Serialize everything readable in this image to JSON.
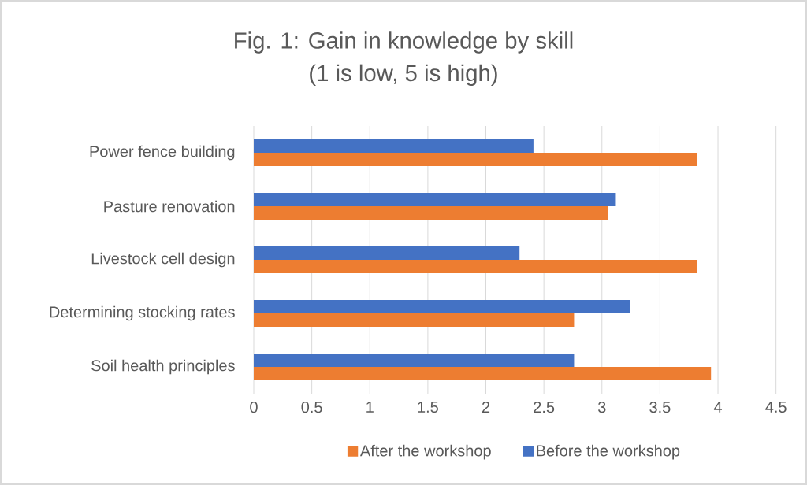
{
  "chart_data": {
    "type": "bar",
    "orientation": "horizontal",
    "title": "Fig. 1: Gain in knowledge by skill\n(1 is low, 5 is high)",
    "categories": [
      "Power fence building",
      "Pasture renovation",
      "Livestock cell design",
      "Determining stocking rates",
      "Soil health principles"
    ],
    "series": [
      {
        "name": "After the workshop",
        "color": "#ed7d31",
        "values": [
          3.82,
          3.05,
          3.82,
          2.76,
          3.94
        ]
      },
      {
        "name": "Before the workshop",
        "color": "#4472c4",
        "values": [
          2.41,
          3.12,
          2.29,
          3.24,
          2.76
        ]
      }
    ],
    "xlim": [
      0,
      4.5
    ],
    "xticks": [
      0,
      0.5,
      1,
      1.5,
      2,
      2.5,
      3,
      3.5,
      4,
      4.5
    ],
    "grid": "x",
    "legend": "bottom"
  }
}
